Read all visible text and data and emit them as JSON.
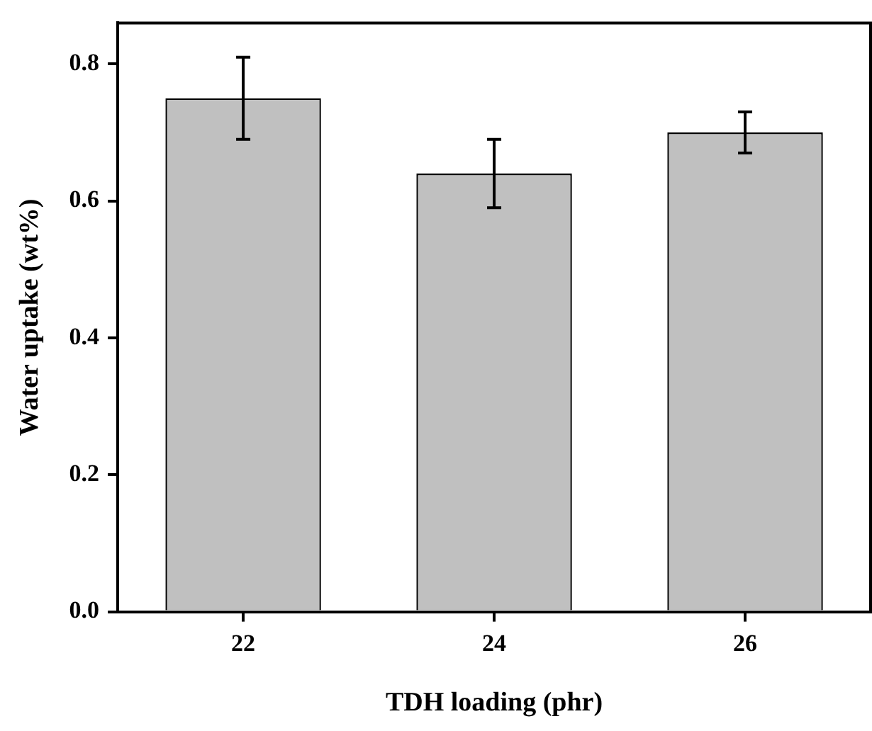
{
  "chart_data": {
    "type": "bar",
    "xlabel": "TDH loading (phr)",
    "ylabel": "Water uptake (wt%)",
    "categories": [
      "22",
      "24",
      "26"
    ],
    "values": [
      0.75,
      0.64,
      0.7
    ],
    "errors": [
      0.06,
      0.05,
      0.03
    ],
    "color": "#c0c0c0",
    "ylim": [
      0,
      0.86
    ],
    "yticks": [
      {
        "value": 0,
        "label": "0.0"
      },
      0.2,
      0.4,
      0.6,
      0.8
    ]
  }
}
